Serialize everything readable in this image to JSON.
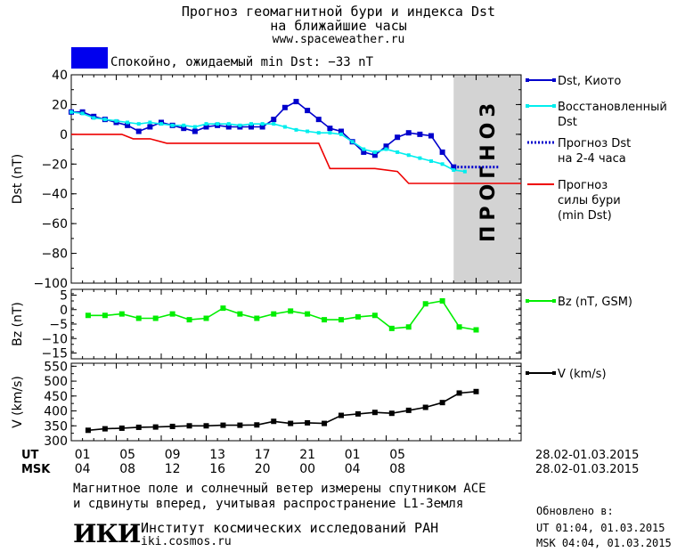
{
  "header": {
    "title_line1": "Прогноз геомагнитной бури и индекса Dst",
    "title_line2": "на ближайшие часы",
    "site": "www.spaceweather.ru",
    "status_text": "Спокойно, ожидаемый min Dst: −33 nT",
    "status_color": "#0000ee"
  },
  "chart_data": [
    {
      "type": "line",
      "panel": "dst",
      "ylabel": "Dst (nT)",
      "ylim": [
        -100,
        40
      ],
      "yticks": [
        40,
        20,
        0,
        -20,
        -40,
        -60,
        -80,
        -100
      ],
      "xlim": [
        0,
        40
      ],
      "forecast_band": {
        "x": [
          34,
          40
        ],
        "label": "ПРОГНОЗ",
        "color": "#d3d3d3"
      },
      "series": [
        {
          "name": "Dst, Киото",
          "color": "#0000cc",
          "marker": "square",
          "x": [
            0,
            1,
            2,
            3,
            4,
            5,
            6,
            7,
            8,
            9,
            10,
            11,
            12,
            13,
            14,
            15,
            16,
            17,
            18,
            19,
            20,
            21,
            22,
            23,
            24,
            25,
            26,
            27,
            28,
            29,
            30,
            31,
            32,
            33,
            34
          ],
          "y": [
            15,
            15,
            12,
            10,
            8,
            6,
            2,
            5,
            8,
            6,
            4,
            2,
            5,
            6,
            5,
            5,
            5,
            5,
            10,
            18,
            22,
            16,
            10,
            4,
            2,
            -5,
            -12,
            -14,
            -8,
            -2,
            1,
            0,
            -1,
            -12,
            -22
          ]
        },
        {
          "name": "Восстановленный Dst",
          "color": "#00eeee",
          "marker": "square",
          "x": [
            0,
            1,
            2,
            3,
            4,
            5,
            6,
            7,
            8,
            9,
            10,
            11,
            12,
            13,
            14,
            15,
            16,
            17,
            18,
            19,
            20,
            21,
            22,
            23,
            24,
            25,
            26,
            27,
            28,
            29,
            30,
            31,
            32,
            33,
            34,
            35
          ],
          "y": [
            15,
            14,
            11,
            10,
            9,
            8,
            7,
            8,
            7,
            6,
            6,
            5,
            7,
            7,
            7,
            6,
            7,
            7,
            7,
            5,
            3,
            2,
            1,
            1,
            0,
            -5,
            -10,
            -12,
            -10,
            -12,
            -14,
            -16,
            -18,
            -20,
            -24,
            -25
          ]
        },
        {
          "name": "Прогноз Dst на 2-4 часа",
          "color": "#0000cc",
          "style": "dotted",
          "x": [
            34,
            38
          ],
          "y": [
            -22,
            -22
          ]
        },
        {
          "name": "Прогноз силы бури (min Dst)",
          "color": "#ee0000",
          "x": [
            0,
            4.5,
            5.5,
            7,
            8.5,
            22,
            23,
            27,
            29,
            30,
            40
          ],
          "y": [
            0,
            0,
            -3,
            -3,
            -6,
            -6,
            -23,
            -23,
            -25,
            -33,
            -33
          ]
        }
      ],
      "legend_placement": "right"
    },
    {
      "type": "line",
      "panel": "bz",
      "ylabel": "Bz (nT)",
      "ylim": [
        -17,
        7
      ],
      "yticks": [
        5,
        0,
        -5,
        -10,
        -15
      ],
      "series": [
        {
          "name": "Bz (nT, GSM)",
          "color": "#00ee00",
          "marker": "square",
          "x": [
            1.5,
            3,
            4.5,
            6,
            7.5,
            9,
            10.5,
            12,
            13.5,
            15,
            16.5,
            18,
            19.5,
            21,
            22.5,
            24,
            25.5,
            27,
            28.5,
            30,
            31.5,
            33,
            34.5,
            36
          ],
          "y": [
            -2,
            -2,
            -1.5,
            -3,
            -3,
            -1.5,
            -3.5,
            -3,
            0.5,
            -1.5,
            -3,
            -1.5,
            -0.5,
            -1.5,
            -3.5,
            -3.5,
            -2.5,
            -2,
            -6.5,
            -6,
            2,
            3,
            -6,
            -7
          ]
        }
      ]
    },
    {
      "type": "line",
      "panel": "v",
      "ylabel": "V (km/s)",
      "ylim": [
        300,
        560
      ],
      "yticks": [
        550,
        500,
        450,
        400,
        350,
        300
      ],
      "series": [
        {
          "name": "V (km/s)",
          "color": "#000000",
          "marker": "square",
          "x": [
            1.5,
            3,
            4.5,
            6,
            7.5,
            9,
            10.5,
            12,
            13.5,
            15,
            16.5,
            18,
            19.5,
            21,
            22.5,
            24,
            25.5,
            27,
            28.5,
            30,
            31.5,
            33,
            34.5,
            36
          ],
          "y": [
            335,
            340,
            342,
            345,
            346,
            348,
            350,
            350,
            352,
            352,
            353,
            365,
            358,
            360,
            358,
            385,
            390,
            395,
            392,
            402,
            412,
            428,
            460,
            465
          ]
        }
      ]
    }
  ],
  "x_axis": {
    "ut_label": "UT",
    "msk_label": "MSK",
    "ut_ticks": [
      "01",
      "05",
      "09",
      "13",
      "17",
      "21",
      "01",
      "05"
    ],
    "msk_ticks": [
      "04",
      "08",
      "12",
      "16",
      "20",
      "00",
      "04",
      "08"
    ],
    "ut_range": "28.02-01.03.2015",
    "msk_range": "28.02-01.03.2015"
  },
  "footer": {
    "line1": "Магнитное поле и солнечный ветер измерены спутником ACE",
    "line2": "и сдвинуты вперед, учитывая распространение L1-Земля",
    "updated_label": "Обновлено в:",
    "updated_ut": "UT  01:04, 01.03.2015",
    "updated_msk": "MSK 04:04, 01.03.2015",
    "logo_text": "ИКИ",
    "institute": "Институт космических исследований РАН",
    "institute_url": "iki.cosmos.ru"
  }
}
